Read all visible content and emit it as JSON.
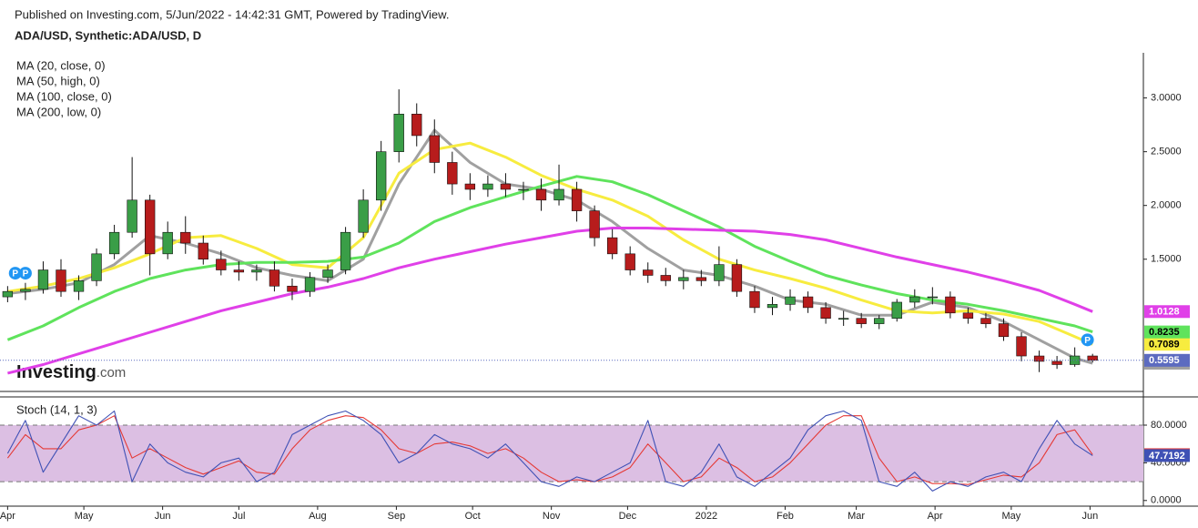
{
  "header": "Published on Investing.com, 5/Jun/2022 - 14:42:31 GMT, Powered by TradingView.",
  "logo": [
    "Investing",
    ".com"
  ],
  "chart_data": [
    {
      "type": "candlestick",
      "title": "ADA/USD, Synthetic:ADA/USD, D",
      "up_color": "#3a9e47",
      "down_color": "#b71c1c",
      "price_line_color": "#5c6bc0",
      "xlim": [
        -3,
        447
      ],
      "xticks": [
        {
          "value": 0,
          "label": "Apr"
        },
        {
          "value": 30,
          "label": "May"
        },
        {
          "value": 61,
          "label": "Jun"
        },
        {
          "value": 91,
          "label": "Jul"
        },
        {
          "value": 122,
          "label": "Aug"
        },
        {
          "value": 153,
          "label": "Sep"
        },
        {
          "value": 183,
          "label": "Oct"
        },
        {
          "value": 214,
          "label": "Nov"
        },
        {
          "value": 244,
          "label": "Dec"
        },
        {
          "value": 275,
          "label": "2022"
        },
        {
          "value": 306,
          "label": "Feb"
        },
        {
          "value": 334,
          "label": "Mar"
        },
        {
          "value": 365,
          "label": "Apr"
        },
        {
          "value": 395,
          "label": "May"
        },
        {
          "value": 426,
          "label": "Jun"
        }
      ],
      "ylim": [
        0.27,
        3.42
      ],
      "yticks": [
        {
          "value": 1.5,
          "label": "1.5000"
        },
        {
          "value": 2,
          "label": "2.0000"
        },
        {
          "value": 2.5,
          "label": "2.5000"
        },
        {
          "value": 3,
          "label": "3.0000"
        }
      ],
      "x": [
        0,
        7,
        14,
        21,
        28,
        35,
        42,
        49,
        56,
        63,
        70,
        77,
        84,
        91,
        98,
        105,
        112,
        119,
        126,
        133,
        140,
        147,
        154,
        161,
        168,
        175,
        182,
        189,
        196,
        203,
        210,
        217,
        224,
        231,
        238,
        245,
        252,
        259,
        266,
        273,
        280,
        287,
        294,
        301,
        308,
        315,
        322,
        329,
        336,
        343,
        350,
        357,
        364,
        371,
        378,
        385,
        392,
        399,
        406,
        413,
        420,
        427
      ],
      "open": [
        1.15,
        1.2,
        1.22,
        1.4,
        1.2,
        1.3,
        1.55,
        1.75,
        2.05,
        1.55,
        1.75,
        1.65,
        1.5,
        1.4,
        1.38,
        1.4,
        1.25,
        1.2,
        1.33,
        1.4,
        1.75,
        2.05,
        2.5,
        2.85,
        2.65,
        2.4,
        2.2,
        2.15,
        2.2,
        2.15,
        2.15,
        2.05,
        2.15,
        1.95,
        1.7,
        1.55,
        1.4,
        1.35,
        1.3,
        1.33,
        1.3,
        1.45,
        1.2,
        1.05,
        1.08,
        1.15,
        1.05,
        0.95,
        0.95,
        0.9,
        0.95,
        1.1,
        1.15,
        1.15,
        1.0,
        0.95,
        0.9,
        0.78,
        0.6,
        0.55,
        0.52,
        0.6
      ],
      "high": [
        1.25,
        1.28,
        1.48,
        1.5,
        1.35,
        1.6,
        1.82,
        2.45,
        2.1,
        1.85,
        1.9,
        1.72,
        1.58,
        1.48,
        1.45,
        1.48,
        1.32,
        1.38,
        1.45,
        1.8,
        2.15,
        2.6,
        3.08,
        2.95,
        2.8,
        2.5,
        2.3,
        2.28,
        2.3,
        2.22,
        2.25,
        2.38,
        2.22,
        2.0,
        1.78,
        1.62,
        1.47,
        1.42,
        1.4,
        1.4,
        1.62,
        1.5,
        1.25,
        1.15,
        1.22,
        1.2,
        1.1,
        1.02,
        1.0,
        0.98,
        1.13,
        1.22,
        1.24,
        1.2,
        1.05,
        1.0,
        0.95,
        0.82,
        0.65,
        0.6,
        0.68,
        0.62
      ],
      "low": [
        1.1,
        1.12,
        1.18,
        1.15,
        1.12,
        1.25,
        1.5,
        1.7,
        1.35,
        1.5,
        1.55,
        1.45,
        1.35,
        1.3,
        1.3,
        1.2,
        1.12,
        1.15,
        1.28,
        1.36,
        1.7,
        1.95,
        2.4,
        2.55,
        2.3,
        2.1,
        2.05,
        2.08,
        2.08,
        2.05,
        1.95,
        2.0,
        1.85,
        1.62,
        1.5,
        1.35,
        1.28,
        1.25,
        1.22,
        1.25,
        1.25,
        1.15,
        1.0,
        0.98,
        1.02,
        1.0,
        0.9,
        0.88,
        0.86,
        0.85,
        0.92,
        1.05,
        1.08,
        0.95,
        0.9,
        0.86,
        0.74,
        0.55,
        0.45,
        0.48,
        0.5,
        0.54
      ],
      "close": [
        1.2,
        1.22,
        1.4,
        1.2,
        1.3,
        1.55,
        1.75,
        2.05,
        1.55,
        1.75,
        1.65,
        1.5,
        1.4,
        1.38,
        1.4,
        1.25,
        1.2,
        1.33,
        1.4,
        1.75,
        2.05,
        2.5,
        2.85,
        2.65,
        2.4,
        2.2,
        2.15,
        2.2,
        2.15,
        2.15,
        2.05,
        2.15,
        1.95,
        1.7,
        1.55,
        1.4,
        1.35,
        1.3,
        1.33,
        1.3,
        1.45,
        1.2,
        1.05,
        1.08,
        1.15,
        1.05,
        0.95,
        0.95,
        0.9,
        0.95,
        1.1,
        1.15,
        1.15,
        1.0,
        0.95,
        0.9,
        0.78,
        0.6,
        0.55,
        0.52,
        0.6,
        0.5595
      ],
      "series": [
        {
          "name": "MA (20, close, 0)",
          "color": "#a0a0a0",
          "x": [
            0,
            14,
            28,
            42,
            56,
            70,
            84,
            98,
            112,
            126,
            140,
            154,
            168,
            182,
            196,
            210,
            224,
            238,
            252,
            266,
            280,
            294,
            308,
            322,
            336,
            350,
            364,
            378,
            392,
            406,
            420,
            427
          ],
          "values": [
            1.18,
            1.22,
            1.28,
            1.45,
            1.72,
            1.65,
            1.55,
            1.42,
            1.35,
            1.3,
            1.5,
            2.2,
            2.7,
            2.4,
            2.2,
            2.15,
            2.05,
            1.85,
            1.6,
            1.4,
            1.35,
            1.25,
            1.12,
            1.08,
            0.98,
            0.98,
            1.1,
            1.05,
            0.92,
            0.75,
            0.58,
            0.5327
          ]
        },
        {
          "name": "MA (50, high, 0)",
          "color": "#f7ec3f",
          "x": [
            0,
            14,
            28,
            42,
            56,
            70,
            84,
            98,
            112,
            126,
            140,
            154,
            168,
            182,
            196,
            210,
            224,
            238,
            252,
            266,
            280,
            294,
            308,
            322,
            336,
            350,
            364,
            378,
            392,
            406,
            420,
            427
          ],
          "values": [
            1.2,
            1.25,
            1.32,
            1.42,
            1.55,
            1.7,
            1.72,
            1.6,
            1.45,
            1.42,
            1.7,
            2.3,
            2.52,
            2.58,
            2.45,
            2.28,
            2.15,
            2.05,
            1.9,
            1.68,
            1.5,
            1.4,
            1.32,
            1.23,
            1.12,
            1.02,
            1.0,
            1.02,
            0.99,
            0.92,
            0.78,
            0.7089
          ]
        },
        {
          "name": "MA (100, close, 0)",
          "color": "#5fe35c",
          "x": [
            0,
            14,
            28,
            42,
            56,
            70,
            84,
            98,
            112,
            126,
            140,
            154,
            168,
            182,
            196,
            210,
            224,
            238,
            252,
            266,
            280,
            294,
            308,
            322,
            336,
            350,
            364,
            378,
            392,
            406,
            420,
            427
          ],
          "values": [
            0.75,
            0.88,
            1.05,
            1.2,
            1.32,
            1.4,
            1.45,
            1.47,
            1.47,
            1.48,
            1.52,
            1.65,
            1.85,
            1.98,
            2.08,
            2.18,
            2.27,
            2.22,
            2.1,
            1.95,
            1.8,
            1.62,
            1.48,
            1.35,
            1.26,
            1.18,
            1.12,
            1.08,
            1.02,
            0.95,
            0.88,
            0.8235
          ]
        },
        {
          "name": "MA (200, low, 0)",
          "color": "#e040e8",
          "x": [
            0,
            14,
            28,
            42,
            56,
            70,
            84,
            98,
            112,
            126,
            140,
            154,
            168,
            182,
            196,
            210,
            224,
            238,
            252,
            266,
            280,
            294,
            308,
            322,
            336,
            350,
            364,
            378,
            392,
            406,
            420,
            427
          ],
          "values": [
            0.44,
            0.52,
            0.62,
            0.72,
            0.82,
            0.92,
            1.02,
            1.1,
            1.18,
            1.24,
            1.32,
            1.42,
            1.5,
            1.57,
            1.64,
            1.7,
            1.76,
            1.79,
            1.79,
            1.78,
            1.77,
            1.76,
            1.73,
            1.68,
            1.6,
            1.52,
            1.45,
            1.38,
            1.3,
            1.21,
            1.08,
            1.0128
          ]
        }
      ],
      "events": {
        "label": "P",
        "x": [
          3,
          7,
          425
        ],
        "y": [
          1.37,
          1.37,
          0.75
        ],
        "color": "#2196f3"
      }
    },
    {
      "type": "line",
      "title": "Stoch (14, 1, 3)",
      "xlim": [
        -3,
        447
      ],
      "ylim": [
        -6,
        109
      ],
      "yticks": [
        {
          "value": 0,
          "label": "0.0000"
        },
        {
          "value": 40,
          "label": "40.0000"
        },
        {
          "value": 80,
          "label": "80.0000"
        }
      ],
      "band": [
        20,
        80
      ],
      "band_color": "#dcbfe3",
      "x": [
        0,
        7,
        14,
        21,
        28,
        35,
        42,
        49,
        56,
        63,
        70,
        77,
        84,
        91,
        98,
        105,
        112,
        119,
        126,
        133,
        140,
        147,
        154,
        161,
        168,
        175,
        182,
        189,
        196,
        203,
        210,
        217,
        224,
        231,
        238,
        245,
        252,
        259,
        266,
        273,
        280,
        287,
        294,
        301,
        308,
        315,
        322,
        329,
        336,
        343,
        350,
        357,
        364,
        371,
        378,
        385,
        392,
        399,
        406,
        413,
        420,
        427
      ],
      "series": [
        {
          "color": "#e53935",
          "values": [
            45,
            70,
            55,
            55,
            75,
            80,
            90,
            45,
            55,
            45,
            35,
            28,
            35,
            42,
            30,
            28,
            55,
            75,
            85,
            90,
            88,
            75,
            55,
            50,
            60,
            62,
            58,
            50,
            55,
            45,
            30,
            20,
            22,
            20,
            25,
            35,
            60,
            40,
            20,
            25,
            45,
            35,
            20,
            25,
            40,
            60,
            80,
            90,
            90,
            45,
            20,
            25,
            18,
            18,
            17,
            22,
            27,
            25,
            40,
            70,
            75,
            48.6536
          ]
        },
        {
          "color": "#3f51b5",
          "values": [
            50,
            85,
            30,
            60,
            90,
            80,
            95,
            20,
            60,
            40,
            30,
            25,
            40,
            45,
            20,
            30,
            70,
            80,
            90,
            95,
            85,
            70,
            40,
            50,
            70,
            60,
            55,
            45,
            60,
            40,
            20,
            15,
            25,
            20,
            30,
            40,
            85,
            20,
            15,
            30,
            60,
            25,
            15,
            30,
            45,
            75,
            90,
            95,
            85,
            20,
            15,
            30,
            10,
            20,
            15,
            25,
            30,
            20,
            55,
            85,
            60,
            47.7192
          ]
        }
      ]
    }
  ]
}
